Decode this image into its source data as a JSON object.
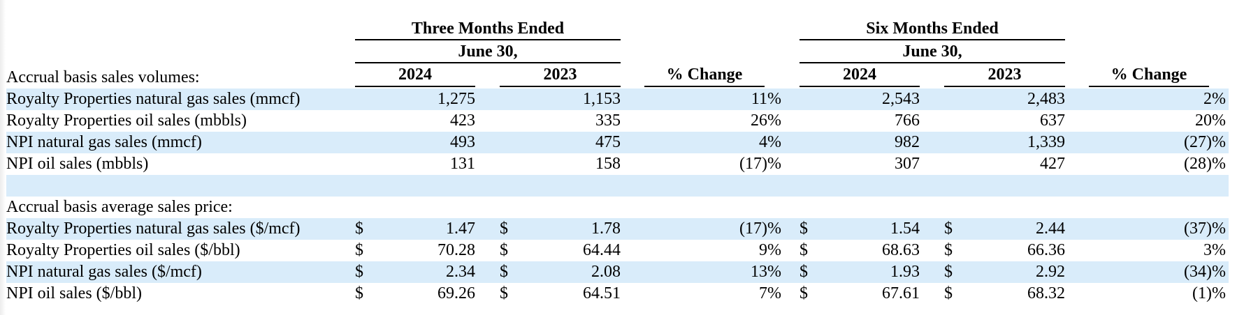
{
  "header": {
    "group1_title": "Three Months Ended",
    "group1_subtitle": "June 30,",
    "group2_title": "Six Months Ended",
    "group2_subtitle": "June 30,",
    "col_2024": "2024",
    "col_2023": "2023",
    "pct_change": "% Change"
  },
  "sections": {
    "volumes_label": "Accrual basis sales volumes:",
    "prices_label": "Accrual basis average sales price:"
  },
  "currency_symbol": "$",
  "volume_rows": [
    {
      "label": "Royalty Properties natural gas sales (mmcf)",
      "q2024": "1,275",
      "q2023": "1,153",
      "qchg": "11%",
      "s2024": "2,543",
      "s2023": "2,483",
      "schg": "2%"
    },
    {
      "label": "Royalty Properties oil sales (mbbls)",
      "q2024": "423",
      "q2023": "335",
      "qchg": "26%",
      "s2024": "766",
      "s2023": "637",
      "schg": "20%"
    },
    {
      "label": "NPI natural gas sales (mmcf)",
      "q2024": "493",
      "q2023": "475",
      "qchg": "4%",
      "s2024": "982",
      "s2023": "1,339",
      "schg": "(27)%"
    },
    {
      "label": "NPI oil sales (mbbls)",
      "q2024": "131",
      "q2023": "158",
      "qchg": "(17)%",
      "s2024": "307",
      "s2023": "427",
      "schg": "(28)%"
    }
  ],
  "price_rows": [
    {
      "label": "Royalty Properties natural gas sales ($/mcf)",
      "q2024": "1.47",
      "q2023": "1.78",
      "qchg": "(17)%",
      "s2024": "1.54",
      "s2023": "2.44",
      "schg": "(37)%"
    },
    {
      "label": "Royalty Properties oil sales ($/bbl)",
      "q2024": "70.28",
      "q2023": "64.44",
      "qchg": "9%",
      "s2024": "68.63",
      "s2023": "66.36",
      "schg": "3%"
    },
    {
      "label": "NPI natural gas sales ($/mcf)",
      "q2024": "2.34",
      "q2023": "2.08",
      "qchg": "13%",
      "s2024": "1.93",
      "s2023": "2.92",
      "schg": "(34)%"
    },
    {
      "label": "NPI oil sales ($/bbl)",
      "q2024": "69.26",
      "q2023": "64.51",
      "qchg": "7%",
      "s2024": "67.61",
      "s2023": "68.32",
      "schg": "(1)%"
    }
  ]
}
